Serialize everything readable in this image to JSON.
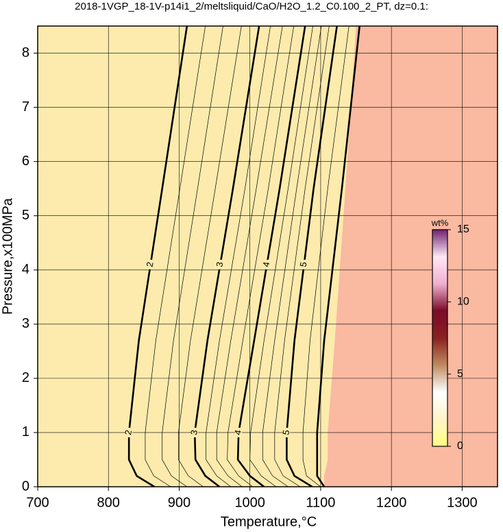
{
  "chart_data": {
    "type": "contour",
    "title": "2018-1VGP_18-1V-p14i1_2/meltsliquid/CaO/H2O_1.2_C0.100_2_PT, dz=0.1:",
    "xlabel": "Temperature,°C",
    "ylabel": "Pressure,x100MPa",
    "xlim": [
      700,
      1350
    ],
    "ylim": [
      0,
      8.5
    ],
    "xticks": [
      700,
      800,
      900,
      1000,
      1100,
      1200,
      1300
    ],
    "yticks": [
      0,
      1,
      2,
      3,
      4,
      5,
      6,
      7,
      8
    ],
    "grid": true,
    "fill_color": "#fcebad",
    "region_color": "#fab9a1",
    "y": [
      0,
      0.2,
      0.5,
      1,
      2.7,
      5.5,
      8.5
    ],
    "region_boundary_x": [
      1105,
      1105,
      1110,
      1110,
      1120,
      1135,
      1150
    ],
    "contours": [
      {
        "level": 2,
        "x": [
          865,
          840,
          829,
          829,
          843,
          876,
          911
        ]
      },
      {
        "level": 2.25,
        "x": [
          888,
          864,
          852,
          852,
          867,
          901,
          937
        ]
      },
      {
        "level": 2.5,
        "x": [
          911,
          889,
          876,
          876,
          892,
          926,
          962
        ]
      },
      {
        "level": 2.75,
        "x": [
          934,
          913,
          899,
          899,
          916,
          951,
          988
        ]
      },
      {
        "level": 3,
        "x": [
          957,
          937,
          923,
          922,
          940,
          976,
          1013
        ]
      },
      {
        "level": 3.25,
        "x": [
          973,
          953,
          938,
          938,
          957,
          993,
          1029
        ]
      },
      {
        "level": 3.5,
        "x": [
          989,
          969,
          953,
          953,
          973,
          1009,
          1046
        ]
      },
      {
        "level": 3.75,
        "x": [
          1004,
          984,
          968,
          969,
          990,
          1026,
          1062
        ]
      },
      {
        "level": 4,
        "x": [
          1020,
          1000,
          983,
          984,
          1006,
          1042,
          1078
        ]
      },
      {
        "level": 4.25,
        "x": [
          1037,
          1016,
          1000,
          1001,
          1020,
          1054,
          1089
        ]
      },
      {
        "level": 4.5,
        "x": [
          1054,
          1032,
          1018,
          1018,
          1035,
          1066,
          1101
        ]
      },
      {
        "level": 4.75,
        "x": [
          1071,
          1047,
          1035,
          1035,
          1049,
          1078,
          1112
        ]
      },
      {
        "level": 5,
        "x": [
          1088,
          1063,
          1052,
          1052,
          1063,
          1090,
          1123
        ]
      },
      {
        "level": 5.5,
        "x": [
          1100,
          1080,
          1075,
          1075,
          1085,
          1110,
          1140
        ]
      },
      {
        "level": 6,
        "x": [
          1105,
          1095,
          1095,
          1095,
          1105,
          1130,
          1155
        ]
      }
    ],
    "colorbar": {
      "label": "wt%",
      "lim": [
        0,
        15
      ],
      "ticks": [
        0,
        5,
        10,
        15
      ],
      "colors": [
        "#ffff80",
        "#fff3c8",
        "#ffffff",
        "#c08a60",
        "#8a2020",
        "#7a0a28",
        "#f0b0d0",
        "#ffe8f4",
        "#702070"
      ]
    }
  }
}
